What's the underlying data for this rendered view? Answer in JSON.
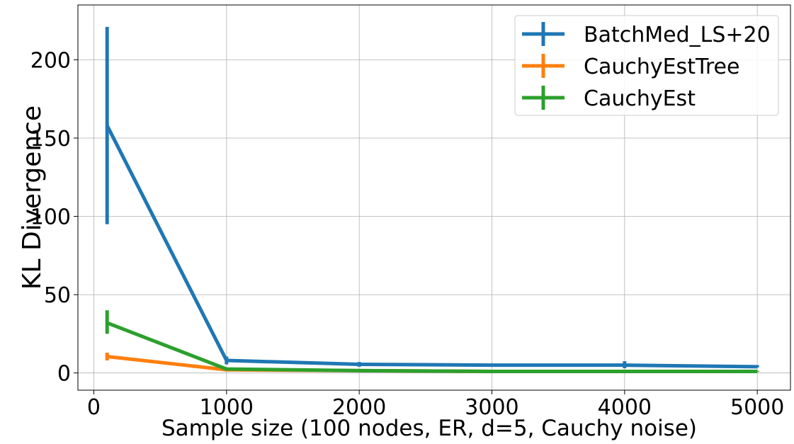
{
  "chart_data": {
    "type": "line",
    "title": "",
    "xlabel": "Sample size (100 nodes, ER, d=5, Cauchy noise)",
    "ylabel": "KL Divergence",
    "xlim": [
      -120,
      5250
    ],
    "ylim": [
      -11,
      235
    ],
    "xticks": [
      0,
      1000,
      2000,
      3000,
      4000,
      5000
    ],
    "yticks": [
      0,
      50,
      100,
      150,
      200
    ],
    "grid": true,
    "legend_position": "top-right",
    "series": [
      {
        "name": "BatchMed_LS+20",
        "color": "#1f77b4",
        "x": [
          100,
          1000,
          2000,
          3000,
          4000,
          5000
        ],
        "y": [
          158,
          8,
          5.5,
          5,
          5,
          4
        ],
        "err_low": [
          95,
          5.5,
          4,
          4,
          3,
          3.5
        ],
        "err_high": [
          221,
          10.5,
          7,
          6,
          7.5,
          5
        ]
      },
      {
        "name": "CauchyEstTree",
        "color": "#ff7f0e",
        "x": [
          100,
          1000,
          2000,
          3000,
          4000,
          5000
        ],
        "y": [
          10.5,
          2,
          1.5,
          1,
          1,
          1
        ],
        "err_low": [
          8,
          1.5,
          1,
          0.7,
          0.7,
          0.7
        ],
        "err_high": [
          13,
          2.5,
          2,
          1.3,
          1.3,
          1.3
        ]
      },
      {
        "name": "CauchyEst",
        "color": "#2ca02c",
        "x": [
          100,
          1000,
          2000,
          3000,
          4000,
          5000
        ],
        "y": [
          32,
          2.5,
          1.5,
          1,
          1,
          1
        ],
        "err_low": [
          25,
          1.5,
          1,
          0.7,
          0.7,
          0.7
        ],
        "err_high": [
          40,
          3.5,
          2,
          1.3,
          1.3,
          1.3
        ]
      }
    ]
  }
}
